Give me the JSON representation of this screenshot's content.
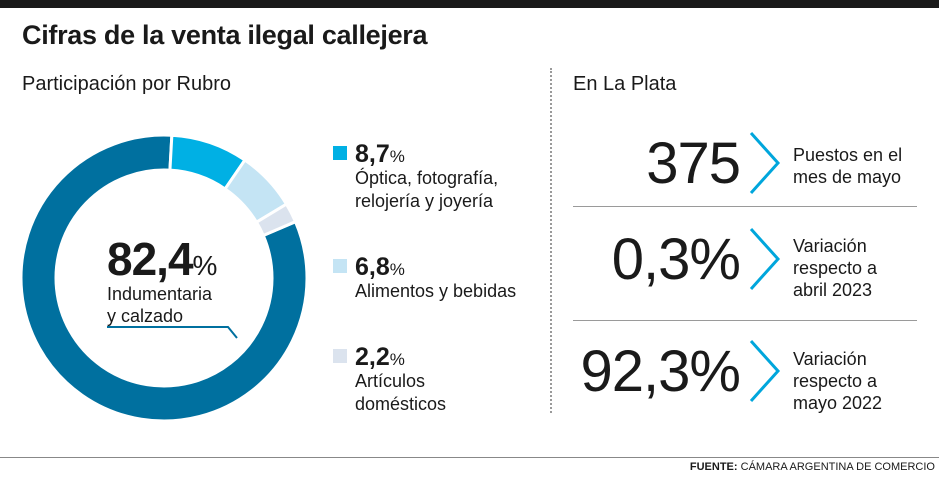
{
  "title": "Cifras de la venta ilegal callejera",
  "left": {
    "subtitle": "Participación por Rubro"
  },
  "right": {
    "subtitle": "En La Plata",
    "stats": [
      {
        "value": "375",
        "label_lines": [
          "Puestos en el",
          "mes de mayo"
        ]
      },
      {
        "value": "0,3%",
        "label_lines": [
          "Variación",
          "respecto a",
          "abril 2023"
        ]
      },
      {
        "value": "92,3%",
        "label_lines": [
          "Variación",
          "respecto a",
          "mayo 2022"
        ]
      }
    ]
  },
  "source": {
    "label": "FUENTE:",
    "text": "CÁMARA ARGENTINA DE COMERCIO"
  },
  "colors": {
    "main": "#00709f",
    "optica": "#00b0e4",
    "alimentos": "#c4e4f4",
    "domesticos": "#dbe3ee",
    "chevron": "#00a6dc"
  },
  "icons": {
    "stat_arrow": "chevron-right-icon"
  },
  "chart_data": {
    "type": "pie",
    "donut": true,
    "unit": "%",
    "slices": [
      {
        "value": 82.4,
        "display": "82,4",
        "label_lines": [
          "Indumentaria",
          "y calzado"
        ],
        "color": "#00709f"
      },
      {
        "value": 8.7,
        "display": "8,7",
        "label_lines": [
          "Óptica, fotografía,",
          "relojería y joyería"
        ],
        "color": "#00b0e4"
      },
      {
        "value": 6.8,
        "display": "6,8",
        "label_lines": [
          "Alimentos y bebidas"
        ],
        "color": "#c4e4f4"
      },
      {
        "value": 2.2,
        "display": "2,2",
        "label_lines": [
          "Artículos",
          "domésticos"
        ],
        "color": "#dbe3ee"
      }
    ]
  }
}
